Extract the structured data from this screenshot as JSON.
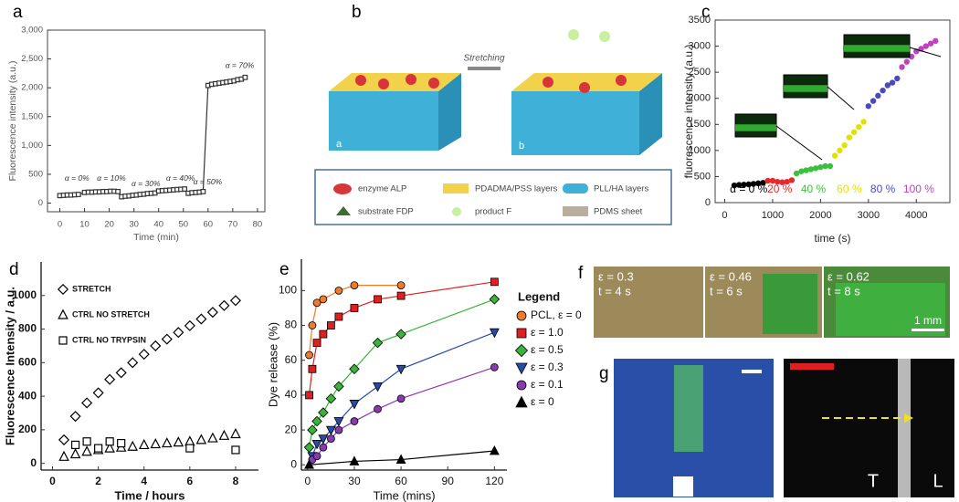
{
  "chart_data": [
    {
      "type": "line",
      "label": "a",
      "xlabel": "Time (min)",
      "ylabel": "Fluorescence intensity (a.u.)",
      "xlim": [
        -5,
        83
      ],
      "ylim": [
        -150,
        3000
      ],
      "xticks": [
        0,
        10,
        20,
        30,
        40,
        50,
        60,
        70,
        80
      ],
      "yticks": [
        0,
        500,
        {
          "value": 1000,
          "label": "1,000"
        },
        {
          "value": 1500,
          "label": "1,500"
        },
        {
          "value": 2000,
          "label": "2,000"
        },
        {
          "value": 2500,
          "label": "2,500"
        },
        {
          "value": 3000,
          "label": "3,000"
        }
      ],
      "frame": true,
      "annotations": [
        "α = 0%",
        "α = 10%",
        "α = 30%",
        "α = 40%",
        "α = 50%",
        "α = 70%"
      ],
      "series": [
        {
          "color": "#333333",
          "marker": "square",
          "x": [
            0,
            1.5,
            3,
            4.5,
            6,
            7.5,
            10,
            11.5,
            13,
            14.5,
            16,
            17.5,
            19,
            20.5,
            22,
            23.5,
            25,
            26.5,
            28,
            29.5,
            31,
            32.5,
            34,
            35.5,
            37,
            38.5,
            40,
            41.5,
            43,
            44.5,
            46,
            47.5,
            49,
            50.5,
            52,
            53.5,
            55,
            56.5,
            58,
            60,
            61.5,
            63,
            64.5,
            66,
            67.5,
            69,
            70.5,
            72,
            73.5,
            75
          ],
          "values": [
            130,
            135,
            140,
            140,
            145,
            150,
            185,
            190,
            190,
            195,
            195,
            200,
            200,
            205,
            205,
            200,
            110,
            120,
            125,
            135,
            140,
            150,
            155,
            165,
            170,
            175,
            210,
            215,
            220,
            225,
            230,
            235,
            240,
            245,
            170,
            180,
            185,
            190,
            200,
            2040,
            2060,
            2070,
            2080,
            2090,
            2100,
            2110,
            2120,
            2140,
            2150,
            2180
          ]
        }
      ]
    },
    {
      "type": "scatter",
      "label": "c",
      "xlabel": "time (s)",
      "ylabel": "fluorescence intensity (a.u.)",
      "xlim": [
        -200,
        4700
      ],
      "ylim": [
        0,
        3500
      ],
      "xticks": [
        0,
        1000,
        2000,
        3000,
        4000
      ],
      "yticks": [
        0,
        500,
        1000,
        1500,
        2000,
        2500,
        3000,
        3500
      ],
      "frame": true,
      "legend": "bottom",
      "series": [
        {
          "name": "α = 0 %",
          "color": "#000000",
          "marker": "circle",
          "x": [
            200,
            300,
            400,
            500,
            600,
            700,
            800
          ],
          "values": [
            330,
            340,
            345,
            350,
            360,
            370,
            380
          ]
        },
        {
          "name": "20 %",
          "color": "#e8282b",
          "marker": "circle",
          "x": [
            900,
            1000,
            1100,
            1200,
            1300,
            1400
          ],
          "values": [
            420,
            420,
            400,
            390,
            400,
            430
          ]
        },
        {
          "name": "40 %",
          "color": "#3cbf3c",
          "marker": "circle",
          "x": [
            1500,
            1600,
            1700,
            1800,
            1900,
            2000,
            2100,
            2200
          ],
          "values": [
            560,
            600,
            620,
            640,
            660,
            680,
            700,
            700
          ]
        },
        {
          "name": "60 %",
          "color": "#e2e200",
          "marker": "circle",
          "x": [
            2300,
            2400,
            2500,
            2600,
            2700,
            2800,
            2900
          ],
          "values": [
            900,
            1000,
            1100,
            1250,
            1350,
            1450,
            1550
          ]
        },
        {
          "name": "80 %",
          "color": "#4a4ac0",
          "marker": "circle",
          "x": [
            3000,
            3100,
            3200,
            3300,
            3400,
            3500,
            3600
          ],
          "values": [
            1850,
            1950,
            2050,
            2150,
            2250,
            2300,
            2380
          ]
        },
        {
          "name": "100 %",
          "color": "#c040c0",
          "marker": "circle",
          "x": [
            3700,
            3800,
            3900,
            4000,
            4100,
            4200,
            4300,
            4400
          ],
          "values": [
            2600,
            2700,
            2800,
            2900,
            2950,
            3000,
            3050,
            3100
          ]
        }
      ]
    },
    {
      "type": "scatter",
      "label": "d",
      "xlabel": "Time / hours",
      "ylabel": "Fluorescence Intensity / a.u.",
      "xlim": [
        -0.5,
        9
      ],
      "ylim": [
        -40,
        1200
      ],
      "xticks": [
        0,
        2,
        4,
        6,
        8
      ],
      "yticks": [
        0,
        200,
        400,
        600,
        800,
        1000
      ],
      "frame": false,
      "legend": "upper left",
      "series": [
        {
          "name": "STRETCH",
          "color": "#000000",
          "marker": "diamond",
          "x": [
            0.5,
            1,
            1.5,
            2,
            2.5,
            3,
            3.5,
            4,
            4.5,
            5,
            5.5,
            6,
            6.5,
            7,
            7.5,
            8
          ],
          "values": [
            140,
            280,
            360,
            420,
            500,
            540,
            600,
            650,
            700,
            740,
            780,
            820,
            860,
            900,
            940,
            970
          ]
        },
        {
          "name": "CTRL  NO STRETCH",
          "color": "#000000",
          "marker": "triangle",
          "x": [
            0.5,
            1,
            1.5,
            2,
            2.5,
            3,
            3.5,
            4,
            4.5,
            5,
            5.5,
            6,
            6.5,
            7,
            7.5,
            8
          ],
          "values": [
            40,
            55,
            70,
            80,
            90,
            95,
            100,
            110,
            115,
            120,
            125,
            130,
            140,
            150,
            165,
            175
          ]
        },
        {
          "name": "CTRL NO TRYPSIN",
          "color": "#000000",
          "marker": "square",
          "x": [
            1,
            1.5,
            2,
            2.5,
            3,
            6,
            8
          ],
          "values": [
            110,
            130,
            90,
            130,
            120,
            90,
            80
          ]
        }
      ]
    },
    {
      "type": "line",
      "label": "e",
      "xlabel": "Time (mins)",
      "ylabel": "Dye release (%)",
      "xlim": [
        -4,
        128
      ],
      "ylim": [
        -3,
        118
      ],
      "xticks": [
        0,
        30,
        60,
        90,
        120
      ],
      "yticks": [
        0,
        20,
        40,
        60,
        80,
        100
      ],
      "frame": false,
      "legend": "right",
      "legend_title": "Legend",
      "series": [
        {
          "name": "PCL, ε = 0",
          "color": "#f07b2a",
          "marker": "circle",
          "x": [
            1,
            3,
            6,
            10,
            20,
            30,
            60
          ],
          "values": [
            63,
            80,
            93,
            95,
            100,
            103,
            103
          ]
        },
        {
          "name": "ε = 1.0",
          "color": "#e02020",
          "marker": "square",
          "x": [
            1,
            3,
            6,
            10,
            15,
            20,
            30,
            45,
            60,
            120
          ],
          "values": [
            40,
            55,
            70,
            75,
            80,
            85,
            90,
            95,
            97,
            105
          ]
        },
        {
          "name": "ε = 0.5",
          "color": "#3ab33a",
          "marker": "diamond",
          "x": [
            1,
            3,
            6,
            10,
            15,
            20,
            30,
            45,
            60,
            120
          ],
          "values": [
            10,
            20,
            25,
            30,
            38,
            45,
            55,
            70,
            75,
            95
          ]
        },
        {
          "name": "ε = 0.3",
          "color": "#2a4aa8",
          "marker": "triangle-down",
          "x": [
            3,
            6,
            10,
            15,
            20,
            30,
            45,
            60,
            120
          ],
          "values": [
            5,
            12,
            15,
            20,
            25,
            35,
            45,
            55,
            76
          ]
        },
        {
          "name": "ε = 0.1",
          "color": "#8a3ab0",
          "marker": "circle",
          "x": [
            3,
            6,
            10,
            15,
            20,
            30,
            45,
            60,
            120
          ],
          "values": [
            3,
            5,
            10,
            15,
            20,
            25,
            32,
            38,
            56
          ]
        },
        {
          "name": "ε = 0",
          "color": "#000000",
          "marker": "triangle",
          "x": [
            1,
            30,
            60,
            120
          ],
          "values": [
            0,
            2,
            3,
            8
          ]
        }
      ]
    }
  ],
  "panel_b": {
    "label": "b",
    "stretching": "Stretching",
    "inset_a": "a",
    "inset_b": "b",
    "legend": [
      "enzyme ALP",
      "PDADMA/PSS layers",
      "PLL/HA layers",
      "substrate FDP",
      "product F",
      "PDMS sheet"
    ]
  },
  "panel_f": {
    "label": "f",
    "frames": [
      {
        "strain": "ε = 0.3",
        "time": "t = 4 s"
      },
      {
        "strain": "ε = 0.46",
        "time": "t = 6 s"
      },
      {
        "strain": "ε = 0.62",
        "time": "t = 8 s"
      }
    ],
    "scale_bar": "1 mm"
  },
  "panel_g": {
    "label": "g",
    "left": "T",
    "right": "L"
  }
}
